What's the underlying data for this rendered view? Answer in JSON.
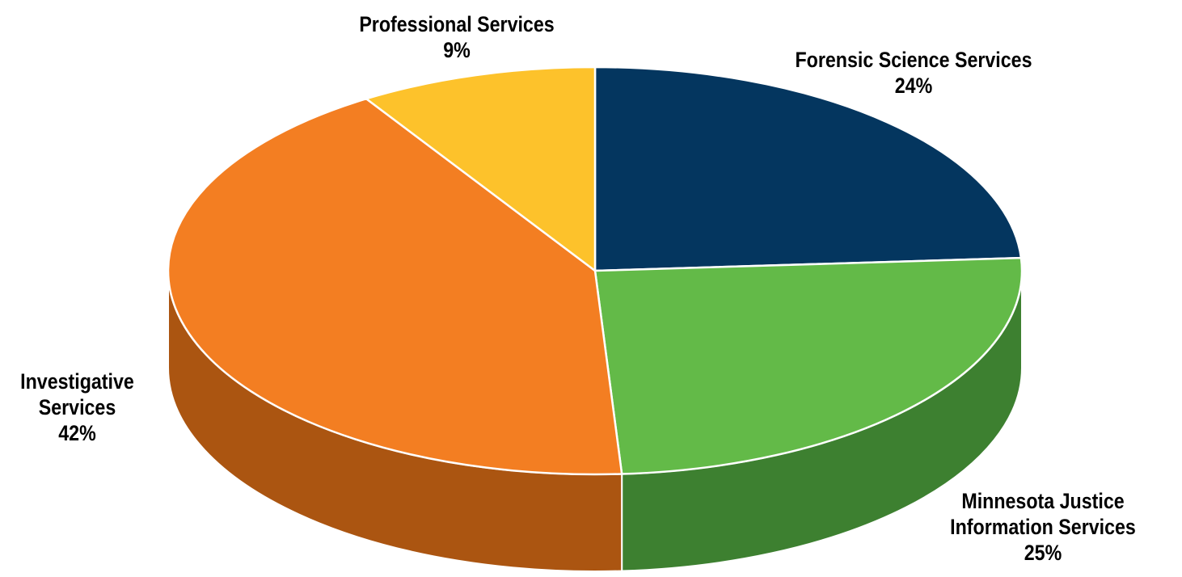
{
  "chart_data": {
    "type": "pie",
    "style": "3d",
    "slices": [
      {
        "name": "Forensic Science Services",
        "label_lines": [
          "Forensic Science Services"
        ],
        "value": 24,
        "value_label": "24%",
        "color": "#04365F",
        "side_color": "#02233F"
      },
      {
        "name": "Minnesota Justice Information Services",
        "label_lines": [
          "Minnesota Justice",
          "Information Services"
        ],
        "value": 25,
        "value_label": "25%",
        "color": "#63BA48",
        "side_color": "#3D8030"
      },
      {
        "name": "Investigative Services",
        "label_lines": [
          "Investigative",
          "Services"
        ],
        "value": 42,
        "value_label": "42%",
        "color": "#F37E22",
        "side_color": "#AB5511"
      },
      {
        "name": "Professional Services",
        "label_lines": [
          "Professional Services"
        ],
        "value": 9,
        "value_label": "9%",
        "color": "#FDC22B",
        "side_color": "#C8940F"
      }
    ],
    "start_angle": "12 o'clock",
    "direction": "clockwise",
    "legend": "none",
    "data_labels": "outside"
  }
}
